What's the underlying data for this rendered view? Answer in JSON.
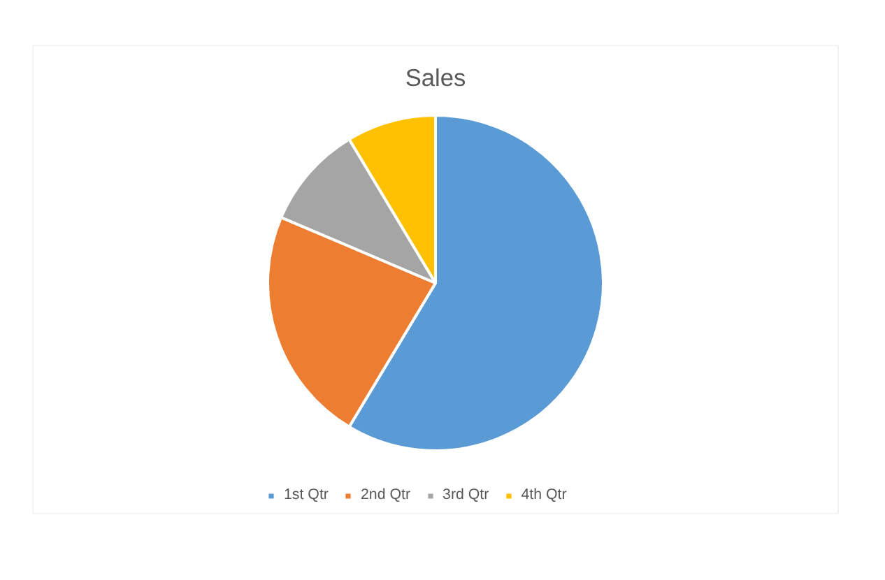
{
  "chart_data": {
    "type": "pie",
    "title": "Sales",
    "categories": [
      "1st Qtr",
      "2nd Qtr",
      "3rd Qtr",
      "4th Qtr"
    ],
    "values": [
      58.6,
      22.8,
      10.0,
      8.6
    ],
    "colors": [
      "#5b9bd5",
      "#ed7d31",
      "#a5a5a5",
      "#ffc000"
    ],
    "legend": "bottom"
  }
}
